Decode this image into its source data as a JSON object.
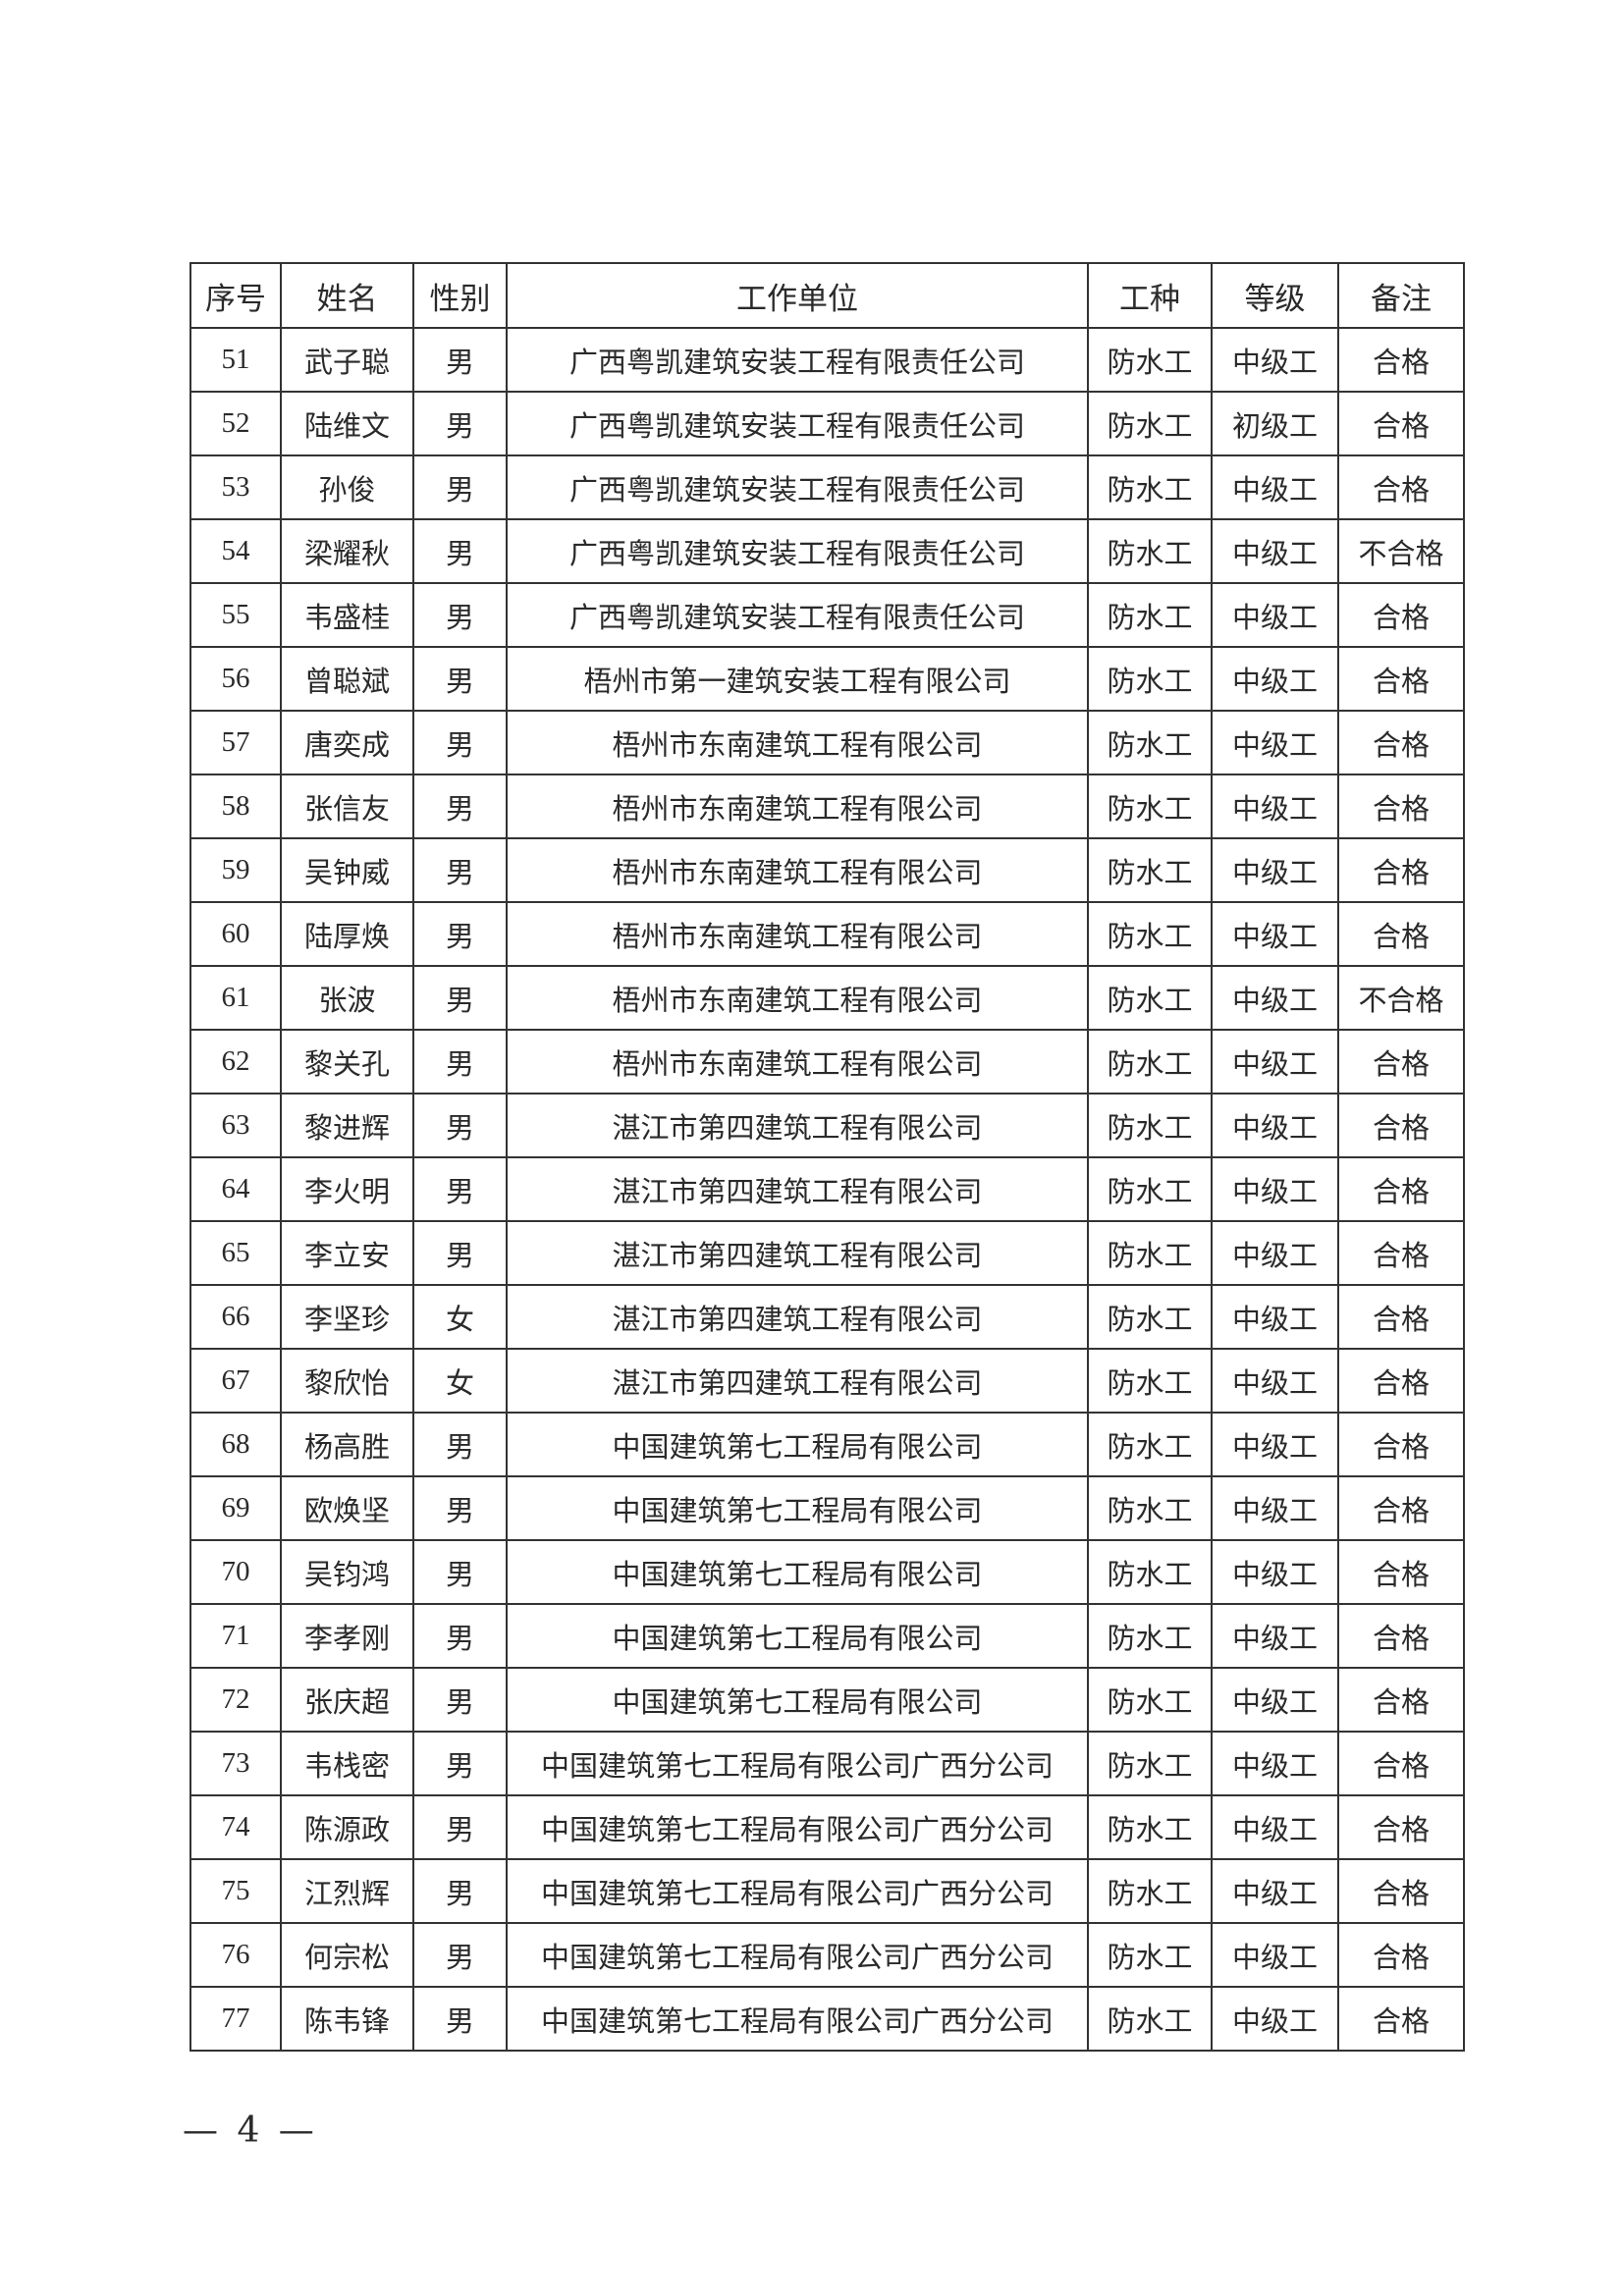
{
  "table": {
    "headers": [
      "序号",
      "姓名",
      "性别",
      "工作单位",
      "工种",
      "等级",
      "备注"
    ],
    "rows": [
      [
        "51",
        "武子聪",
        "男",
        "广西粤凯建筑安装工程有限责任公司",
        "防水工",
        "中级工",
        "合格"
      ],
      [
        "52",
        "陆维文",
        "男",
        "广西粤凯建筑安装工程有限责任公司",
        "防水工",
        "初级工",
        "合格"
      ],
      [
        "53",
        "孙俊",
        "男",
        "广西粤凯建筑安装工程有限责任公司",
        "防水工",
        "中级工",
        "合格"
      ],
      [
        "54",
        "梁耀秋",
        "男",
        "广西粤凯建筑安装工程有限责任公司",
        "防水工",
        "中级工",
        "不合格"
      ],
      [
        "55",
        "韦盛桂",
        "男",
        "广西粤凯建筑安装工程有限责任公司",
        "防水工",
        "中级工",
        "合格"
      ],
      [
        "56",
        "曾聪斌",
        "男",
        "梧州市第一建筑安装工程有限公司",
        "防水工",
        "中级工",
        "合格"
      ],
      [
        "57",
        "唐奕成",
        "男",
        "梧州市东南建筑工程有限公司",
        "防水工",
        "中级工",
        "合格"
      ],
      [
        "58",
        "张信友",
        "男",
        "梧州市东南建筑工程有限公司",
        "防水工",
        "中级工",
        "合格"
      ],
      [
        "59",
        "吴钟威",
        "男",
        "梧州市东南建筑工程有限公司",
        "防水工",
        "中级工",
        "合格"
      ],
      [
        "60",
        "陆厚焕",
        "男",
        "梧州市东南建筑工程有限公司",
        "防水工",
        "中级工",
        "合格"
      ],
      [
        "61",
        "张波",
        "男",
        "梧州市东南建筑工程有限公司",
        "防水工",
        "中级工",
        "不合格"
      ],
      [
        "62",
        "黎关孔",
        "男",
        "梧州市东南建筑工程有限公司",
        "防水工",
        "中级工",
        "合格"
      ],
      [
        "63",
        "黎进辉",
        "男",
        "湛江市第四建筑工程有限公司",
        "防水工",
        "中级工",
        "合格"
      ],
      [
        "64",
        "李火明",
        "男",
        "湛江市第四建筑工程有限公司",
        "防水工",
        "中级工",
        "合格"
      ],
      [
        "65",
        "李立安",
        "男",
        "湛江市第四建筑工程有限公司",
        "防水工",
        "中级工",
        "合格"
      ],
      [
        "66",
        "李坚珍",
        "女",
        "湛江市第四建筑工程有限公司",
        "防水工",
        "中级工",
        "合格"
      ],
      [
        "67",
        "黎欣怡",
        "女",
        "湛江市第四建筑工程有限公司",
        "防水工",
        "中级工",
        "合格"
      ],
      [
        "68",
        "杨高胜",
        "男",
        "中国建筑第七工程局有限公司",
        "防水工",
        "中级工",
        "合格"
      ],
      [
        "69",
        "欧焕坚",
        "男",
        "中国建筑第七工程局有限公司",
        "防水工",
        "中级工",
        "合格"
      ],
      [
        "70",
        "吴钧鸿",
        "男",
        "中国建筑第七工程局有限公司",
        "防水工",
        "中级工",
        "合格"
      ],
      [
        "71",
        "李孝刚",
        "男",
        "中国建筑第七工程局有限公司",
        "防水工",
        "中级工",
        "合格"
      ],
      [
        "72",
        "张庆超",
        "男",
        "中国建筑第七工程局有限公司",
        "防水工",
        "中级工",
        "合格"
      ],
      [
        "73",
        "韦栈密",
        "男",
        "中国建筑第七工程局有限公司广西分公司",
        "防水工",
        "中级工",
        "合格"
      ],
      [
        "74",
        "陈源政",
        "男",
        "中国建筑第七工程局有限公司广西分公司",
        "防水工",
        "中级工",
        "合格"
      ],
      [
        "75",
        "江烈辉",
        "男",
        "中国建筑第七工程局有限公司广西分公司",
        "防水工",
        "中级工",
        "合格"
      ],
      [
        "76",
        "何宗松",
        "男",
        "中国建筑第七工程局有限公司广西分公司",
        "防水工",
        "中级工",
        "合格"
      ],
      [
        "77",
        "陈韦锋",
        "男",
        "中国建筑第七工程局有限公司广西分公司",
        "防水工",
        "中级工",
        "合格"
      ]
    ]
  },
  "footer": {
    "page_number": "— 4 —"
  }
}
